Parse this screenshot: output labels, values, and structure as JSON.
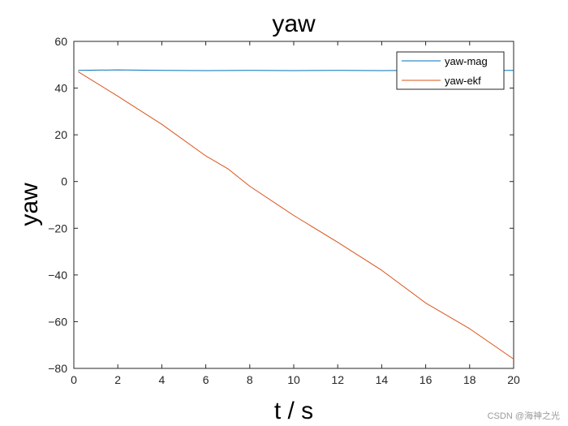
{
  "chart_data": {
    "type": "line",
    "title": "yaw",
    "xlabel": "t / s",
    "ylabel": "yaw",
    "xlim": [
      0,
      20
    ],
    "ylim": [
      -80,
      60
    ],
    "xticks": [
      0,
      2,
      4,
      6,
      8,
      10,
      12,
      14,
      16,
      18,
      20
    ],
    "yticks": [
      -80,
      -60,
      -40,
      -20,
      0,
      20,
      40,
      60
    ],
    "grid": false,
    "legend_position": "top-right",
    "series": [
      {
        "name": "yaw-mag",
        "color": "#0072BD",
        "x": [
          0.2,
          2,
          4,
          6,
          8,
          10,
          12,
          14,
          16,
          18,
          20
        ],
        "y": [
          47.6,
          47.8,
          47.6,
          47.5,
          47.6,
          47.5,
          47.6,
          47.5,
          47.6,
          47.5,
          47.6
        ]
      },
      {
        "name": "yaw-ekf",
        "color": "#D95319",
        "x": [
          0.2,
          2,
          4,
          6,
          7,
          8,
          10,
          12,
          14,
          16,
          18,
          20
        ],
        "y": [
          47,
          36.5,
          24.5,
          11,
          5.5,
          -2,
          -14.5,
          -26,
          -38,
          -52,
          -63,
          -76
        ]
      }
    ]
  },
  "watermark": "CSDN @海神之光"
}
